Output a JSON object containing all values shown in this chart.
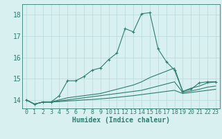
{
  "x": [
    0,
    1,
    2,
    3,
    4,
    5,
    6,
    7,
    8,
    9,
    10,
    11,
    12,
    13,
    14,
    15,
    16,
    17,
    18,
    19,
    20,
    21,
    22,
    23
  ],
  "line1": [
    14.0,
    13.8,
    13.9,
    13.9,
    14.2,
    14.9,
    14.9,
    15.1,
    15.4,
    15.5,
    15.9,
    16.2,
    17.35,
    17.2,
    18.05,
    18.1,
    16.4,
    15.8,
    15.4,
    14.4,
    14.5,
    14.8,
    14.85,
    14.85
  ],
  "line2": [
    14.0,
    13.8,
    13.9,
    13.9,
    14.0,
    14.1,
    14.15,
    14.2,
    14.25,
    14.3,
    14.4,
    14.5,
    14.6,
    14.7,
    14.85,
    15.05,
    15.2,
    15.35,
    15.5,
    14.4,
    14.55,
    14.65,
    14.8,
    14.85
  ],
  "line3": [
    14.0,
    13.8,
    13.9,
    13.9,
    13.95,
    14.0,
    14.05,
    14.1,
    14.15,
    14.2,
    14.25,
    14.3,
    14.35,
    14.4,
    14.45,
    14.55,
    14.65,
    14.75,
    14.85,
    14.35,
    14.42,
    14.5,
    14.6,
    14.65
  ],
  "line4": [
    14.0,
    13.8,
    13.9,
    13.9,
    13.92,
    13.95,
    13.97,
    14.0,
    14.02,
    14.05,
    14.08,
    14.12,
    14.16,
    14.2,
    14.25,
    14.3,
    14.35,
    14.4,
    14.45,
    14.3,
    14.35,
    14.4,
    14.45,
    14.5
  ],
  "line_color": "#2e7d6e",
  "bg_color": "#d8f0f0",
  "grid_color": "#b8d8d8",
  "xlabel": "Humidex (Indice chaleur)",
  "xlim": [
    -0.5,
    23.5
  ],
  "ylim": [
    13.6,
    18.5
  ],
  "yticks": [
    14,
    15,
    16,
    17,
    18
  ],
  "xticks": [
    0,
    1,
    2,
    3,
    4,
    5,
    6,
    7,
    8,
    9,
    10,
    11,
    12,
    13,
    14,
    15,
    16,
    17,
    18,
    19,
    20,
    21,
    22,
    23
  ],
  "tick_fontsize": 6,
  "xlabel_fontsize": 7
}
